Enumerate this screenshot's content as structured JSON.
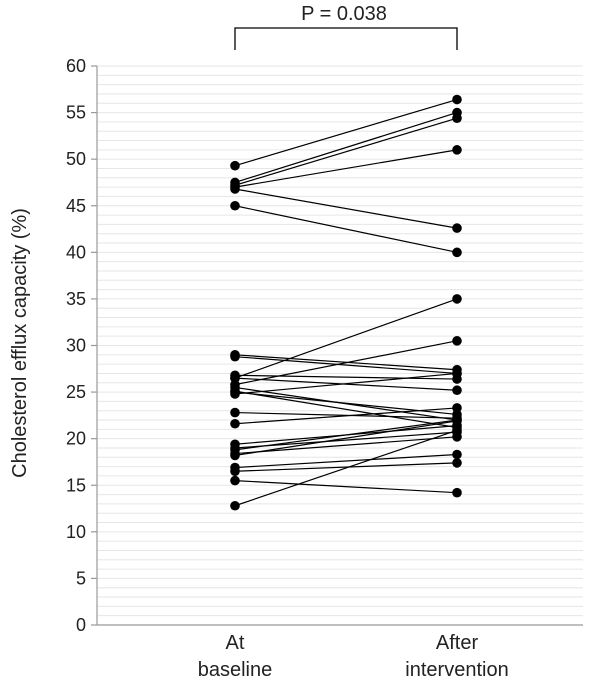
{
  "chart_data": {
    "type": "line",
    "title": "",
    "xlabel": "",
    "ylabel": "Cholesterol efflux capacity (%)",
    "categories": [
      "At baseline",
      "After intervention"
    ],
    "category_lines": [
      [
        "At",
        "baseline"
      ],
      [
        "After",
        "intervention"
      ]
    ],
    "ylim": [
      0,
      60
    ],
    "yticks": [
      0,
      5,
      10,
      15,
      20,
      25,
      30,
      35,
      40,
      45,
      50,
      55,
      60
    ],
    "grid": true,
    "annotation": "P = 0.038",
    "colors": {
      "points": "#000000",
      "lines": "#000000",
      "grid": "#e6e6e6",
      "axis": "#999999"
    },
    "pairs": [
      [
        49.3,
        56.4
      ],
      [
        47.5,
        55.0
      ],
      [
        47.2,
        54.4
      ],
      [
        47.0,
        51.0
      ],
      [
        46.8,
        42.6
      ],
      [
        45.0,
        40.0
      ],
      [
        26.5,
        35.0
      ],
      [
        25.8,
        30.5
      ],
      [
        29.0,
        27.4
      ],
      [
        28.8,
        27.0
      ],
      [
        26.8,
        26.4
      ],
      [
        26.5,
        25.2
      ],
      [
        25.5,
        22.0
      ],
      [
        25.1,
        21.2
      ],
      [
        25.0,
        22.6
      ],
      [
        24.8,
        27.0
      ],
      [
        22.8,
        22.2
      ],
      [
        21.6,
        23.3
      ],
      [
        19.4,
        21.4
      ],
      [
        19.0,
        20.7
      ],
      [
        18.8,
        22.0
      ],
      [
        18.4,
        20.2
      ],
      [
        18.2,
        21.9
      ],
      [
        16.9,
        18.3
      ],
      [
        16.5,
        17.4
      ],
      [
        15.5,
        14.2
      ],
      [
        12.8,
        20.9
      ]
    ]
  }
}
